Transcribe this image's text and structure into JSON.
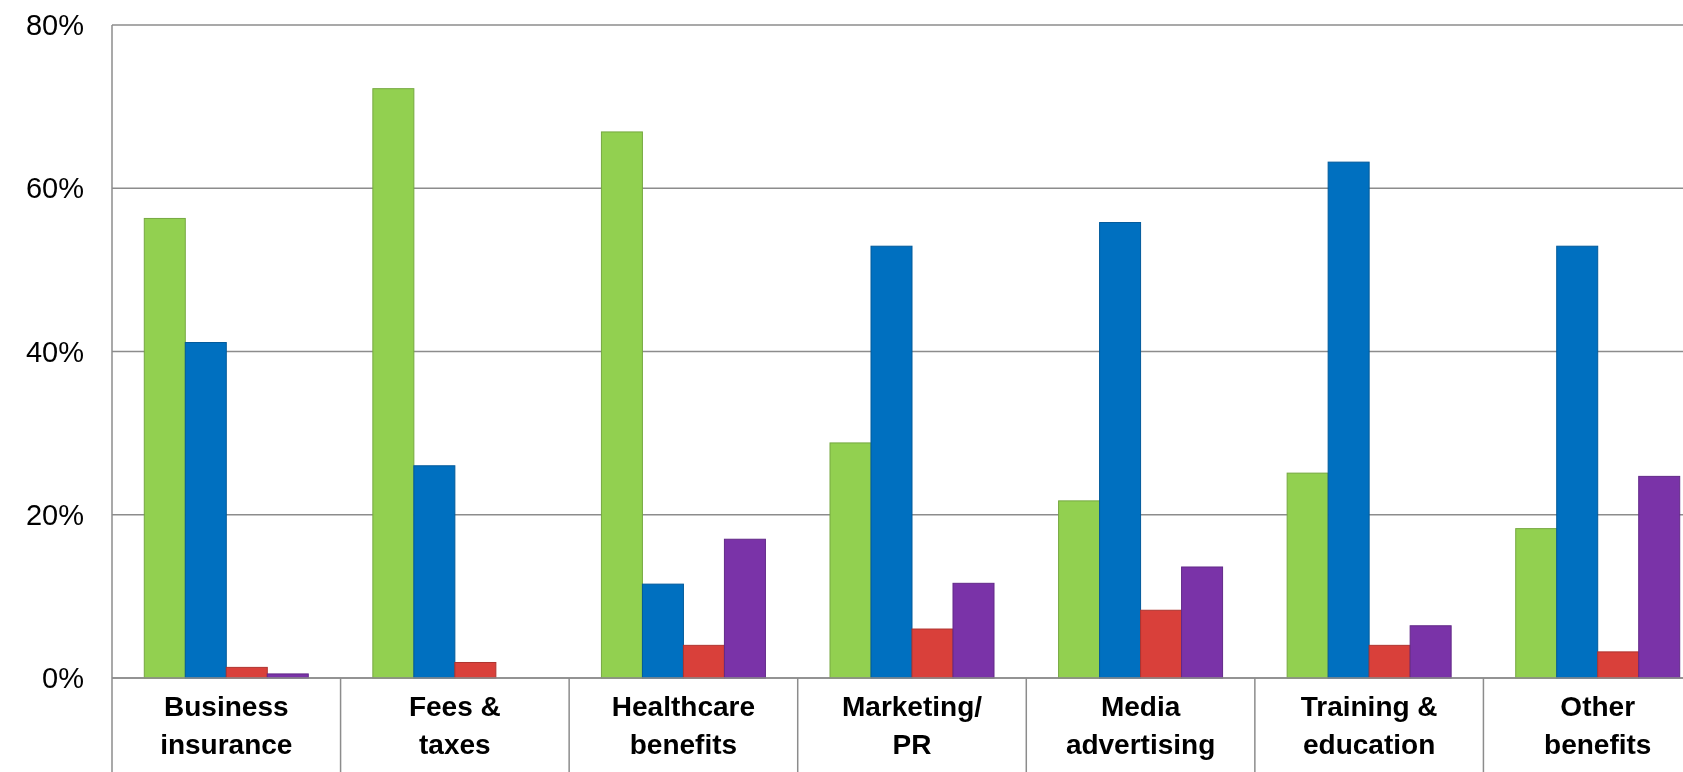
{
  "chart_data": {
    "type": "bar",
    "categories": [
      "Business\ninsurance",
      "Fees &\ntaxes",
      "Healthcare\nbenefits",
      "Marketing/\nPR",
      "Media\nadvertising",
      "Training &\neducation",
      "Other\nbenefits"
    ],
    "series": [
      {
        "color": "#92d050",
        "values": [
          56.3,
          72.2,
          66.9,
          28.8,
          21.7,
          25.1,
          18.3
        ]
      },
      {
        "color": "#0070c0",
        "values": [
          41.1,
          26.0,
          11.5,
          52.9,
          55.8,
          63.2,
          52.9
        ]
      },
      {
        "color": "#d9403a",
        "values": [
          1.3,
          1.9,
          4.0,
          6.0,
          8.3,
          4.0,
          3.2
        ]
      },
      {
        "color": "#7a33a8",
        "values": [
          0.5,
          null,
          17.0,
          11.6,
          13.6,
          6.4,
          24.7
        ]
      }
    ],
    "ylim": [
      0,
      80
    ],
    "yticks": [
      {
        "value": 0,
        "label": "0%"
      },
      {
        "value": 20,
        "label": "20%"
      },
      {
        "value": 40,
        "label": "40%"
      },
      {
        "value": 60,
        "label": "60%"
      },
      {
        "value": 80,
        "label": "80%"
      }
    ],
    "grid": "y"
  }
}
